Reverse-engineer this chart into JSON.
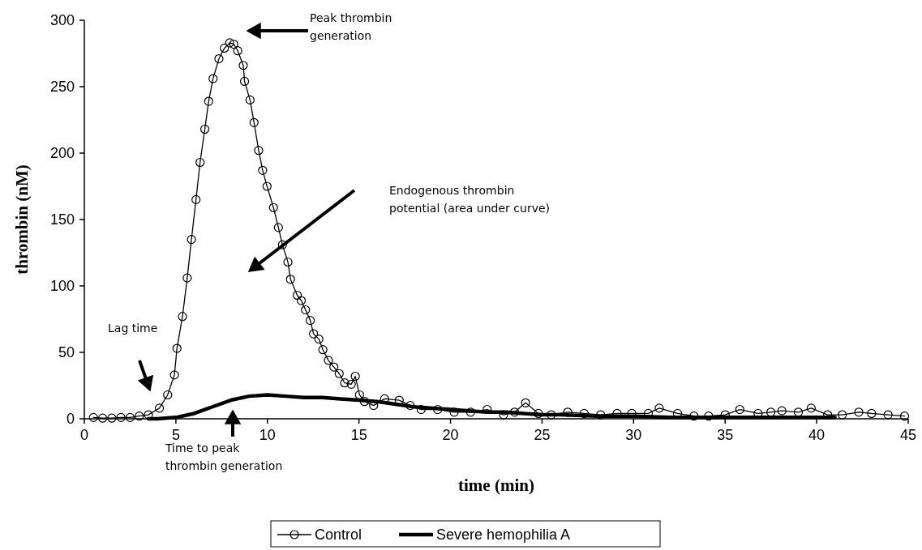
{
  "chart_data": {
    "type": "line",
    "xlabel": "time (min)",
    "ylabel": "thrombin (nM)",
    "xlim": [
      0,
      45
    ],
    "xticks": [
      0,
      5,
      10,
      15,
      20,
      25,
      30,
      35,
      40,
      45
    ],
    "ylim": [
      0,
      300
    ],
    "yticks": [
      0,
      50,
      100,
      150,
      200,
      250,
      300
    ],
    "grid": false,
    "legend": "bottom",
    "line_style": "solid",
    "series": [
      {
        "name": "Control",
        "color": "#000000",
        "marker": "circle",
        "x": [
          0.5,
          1.0,
          1.5,
          2.0,
          2.5,
          3.0,
          3.5,
          4.1,
          4.55,
          4.92,
          5.06,
          5.36,
          5.62,
          5.85,
          6.1,
          6.32,
          6.58,
          6.79,
          7.03,
          7.35,
          7.65,
          7.94,
          8.16,
          8.38,
          8.68,
          8.75,
          9.05,
          9.27,
          9.52,
          9.74,
          9.98,
          10.33,
          10.6,
          10.82,
          11.12,
          11.26,
          11.63,
          11.85,
          12.08,
          12.34,
          12.52,
          12.81,
          13.03,
          13.33,
          13.63,
          13.92,
          14.22,
          14.58,
          14.8,
          15.03,
          15.3,
          15.8,
          16.4,
          17.2,
          17.8,
          18.4,
          19.3,
          20.2,
          21.1,
          22,
          22.9,
          23.5,
          24.1,
          24.8,
          25.5,
          26.4,
          27.3,
          28.2,
          29.1,
          29.9,
          30.8,
          31.4,
          32.4,
          33.3,
          34.1,
          35,
          35.8,
          36.8,
          37.5,
          38.1,
          39,
          39.7,
          40.6,
          41.4,
          42.3,
          43,
          43.9,
          44.8
        ],
        "values": [
          1,
          0.5,
          0.5,
          1,
          1,
          2,
          3,
          8,
          18,
          33,
          53,
          77,
          106,
          135,
          165,
          193,
          218,
          239,
          256,
          271,
          279,
          283,
          282,
          277,
          266,
          254,
          240,
          223,
          202,
          187,
          175,
          159,
          144,
          131,
          118,
          105,
          93,
          89,
          82,
          74,
          64,
          60,
          52,
          44,
          39,
          34,
          27,
          26,
          32,
          18,
          13,
          10,
          15,
          14,
          10,
          7,
          7,
          5,
          5,
          7,
          3,
          5,
          12,
          4,
          3,
          5,
          4,
          3,
          4,
          4,
          4,
          8,
          4,
          2,
          2,
          3,
          7,
          4,
          5,
          6,
          5,
          8,
          3,
          3,
          5,
          4,
          3,
          2
        ]
      },
      {
        "name": "Severe hemophilia A",
        "color": "#000000",
        "marker": "none",
        "x": [
          3.5,
          4,
          5,
          6,
          7,
          8,
          9,
          10,
          11,
          12,
          13,
          14,
          15,
          16,
          17,
          18,
          19,
          20,
          21,
          22,
          23,
          24,
          25,
          26,
          28,
          30,
          32,
          35,
          38,
          40,
          41
        ],
        "values": [
          0,
          0,
          1,
          4,
          9,
          14,
          17,
          18,
          17,
          16,
          16,
          15,
          14,
          13,
          11,
          9,
          8,
          7,
          6,
          5,
          5,
          4,
          3,
          3,
          2,
          2,
          1,
          1,
          1,
          1,
          1
        ]
      }
    ],
    "annotations": [
      "Peak thrombin generation",
      "Endogenous thrombin potential (area under curve)",
      "Lag time",
      "Time to peak thrombin generation"
    ]
  }
}
